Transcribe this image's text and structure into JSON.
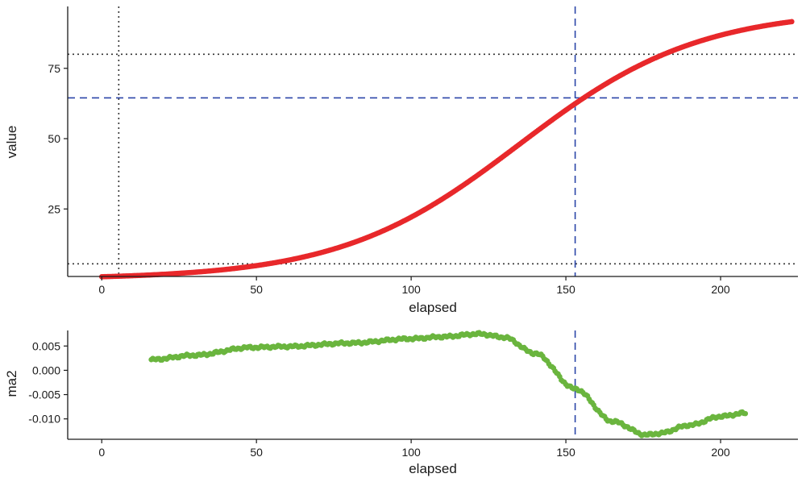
{
  "chart_data": [
    {
      "type": "scatter",
      "xlabel": "elapsed",
      "ylabel": "value",
      "xlim": [
        -11,
        225
      ],
      "ylim": [
        1,
        97
      ],
      "xticks": [
        0,
        50,
        100,
        150,
        200
      ],
      "yticks": [
        25,
        50,
        75
      ],
      "grid": false,
      "colors": {
        "points": "#e8282b",
        "vline_dashed": "#2b45a8",
        "hline_dashed": "#2b45a8",
        "dotted": "#333333"
      },
      "reference_lines": {
        "vline_dashed": 153,
        "hline_dashed": 64.5,
        "vline_dotted": 5.5,
        "hline_dotted": [
          5.5,
          80
        ]
      },
      "curve": {
        "model": "logistic",
        "x_start": 0,
        "x_end": 223,
        "lower": 0,
        "upper": 96,
        "midpoint": 135,
        "scale": 29
      }
    },
    {
      "type": "scatter",
      "xlabel": "elapsed",
      "ylabel": "ma2",
      "xlim": [
        -11,
        225
      ],
      "ylim": [
        -0.0142,
        0.0082
      ],
      "xticks": [
        0,
        50,
        100,
        150,
        200
      ],
      "yticks": [
        0.005,
        0.0,
        -0.005,
        -0.01
      ],
      "ytick_labels": [
        "0.005",
        "0.000",
        "-0.005",
        "-0.010"
      ],
      "grid": false,
      "colors": {
        "points": "#6ab53e",
        "vline_dashed": "#2b45a8"
      },
      "reference_lines": {
        "vline_dashed": 153
      },
      "series_anchors": {
        "x": [
          16,
          30,
          48,
          60,
          80,
          100,
          110,
          122,
          130,
          140,
          153,
          165,
          176,
          180,
          190,
          200,
          208
        ],
        "y": [
          0.0022,
          0.0031,
          0.0047,
          0.0049,
          0.0056,
          0.0065,
          0.0069,
          0.0075,
          0.0068,
          0.0035,
          -0.0038,
          -0.0105,
          -0.0133,
          -0.013,
          -0.0113,
          -0.0095,
          -0.0088
        ]
      }
    }
  ]
}
